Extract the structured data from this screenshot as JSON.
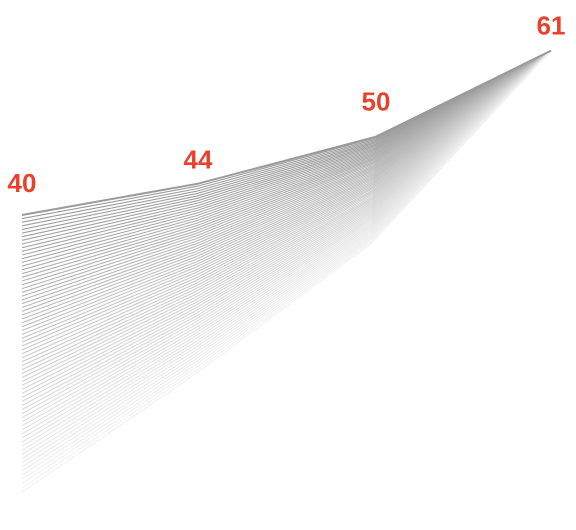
{
  "chart_data": {
    "type": "line",
    "title": "",
    "xlabel": "",
    "ylabel": "",
    "categories": [
      "",
      "",
      "",
      ""
    ],
    "series": [
      {
        "values": [
          40,
          44,
          50,
          61
        ]
      }
    ],
    "data_labels": [
      "40",
      "44",
      "50",
      "61"
    ],
    "ylim": [
      0,
      63
    ],
    "grid": false,
    "legend": "none",
    "style": "stacked-line fade effect under the series line"
  },
  "colors": {
    "label": "#e8412c",
    "line_top": "#9a9a9a",
    "line_bottom": "#f2f2f2"
  }
}
